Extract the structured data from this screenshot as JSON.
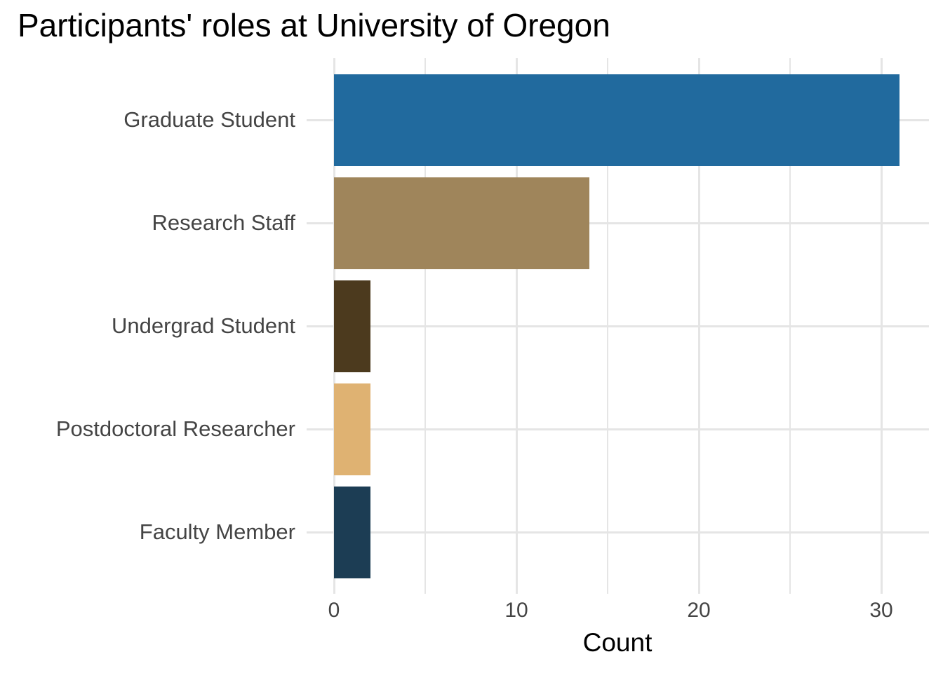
{
  "chart_data": {
    "type": "bar",
    "orientation": "horizontal",
    "title": "Participants' roles at University of Oregon",
    "xlabel": "Count",
    "ylabel": "",
    "categories": [
      "Graduate Student",
      "Research Staff",
      "Undergrad Student",
      "Postdoctoral Researcher",
      "Faculty Member"
    ],
    "values": [
      31,
      14,
      2,
      2,
      2
    ],
    "bar_colors": [
      "#216A9E",
      "#9F855B",
      "#4C3A1E",
      "#DFB272",
      "#1C3D54"
    ],
    "xlim": [
      0,
      31
    ],
    "x_ticks": [
      0,
      10,
      20,
      30
    ],
    "x_gridlines": [
      0,
      5,
      10,
      15,
      20,
      25,
      30
    ],
    "grid": true,
    "legend": false,
    "colors": {
      "background": "#FFFFFF",
      "gridline": "#E5E5E5",
      "axis_text": "#444444",
      "title_text": "#000000"
    }
  }
}
